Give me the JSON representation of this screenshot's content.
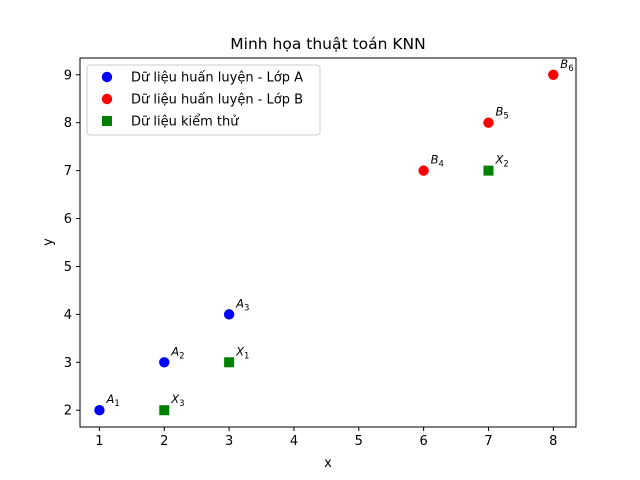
{
  "chart_data": {
    "type": "scatter",
    "title": "Minh họa thuật toán KNN",
    "xlabel": "x",
    "ylabel": "y",
    "xlim": [
      0.7,
      8.35
    ],
    "ylim": [
      1.65,
      9.35
    ],
    "xticks": [
      "1",
      "2",
      "3",
      "4",
      "5",
      "6",
      "7",
      "8"
    ],
    "yticks": [
      "2",
      "3",
      "4",
      "5",
      "6",
      "7",
      "8",
      "9"
    ],
    "grid": false,
    "legend_position": "top-left",
    "series": [
      {
        "name": "Dữ liệu huấn luyện - Lớp A",
        "marker": "circle",
        "color": "#0000ff",
        "points": [
          {
            "x": 1,
            "y": 2,
            "label": "A",
            "sub": "1"
          },
          {
            "x": 2,
            "y": 3,
            "label": "A",
            "sub": "2"
          },
          {
            "x": 3,
            "y": 4,
            "label": "A",
            "sub": "3"
          }
        ]
      },
      {
        "name": "Dữ liệu huấn luyện - Lớp B",
        "marker": "circle",
        "color": "#ff0000",
        "points": [
          {
            "x": 6,
            "y": 7,
            "label": "B",
            "sub": "4"
          },
          {
            "x": 7,
            "y": 8,
            "label": "B",
            "sub": "5"
          },
          {
            "x": 8,
            "y": 9,
            "label": "B",
            "sub": "6"
          }
        ]
      },
      {
        "name": "Dữ liệu kiểm thử",
        "marker": "square",
        "color": "#008000",
        "points": [
          {
            "x": 3,
            "y": 3,
            "label": "X",
            "sub": "1"
          },
          {
            "x": 7,
            "y": 7,
            "label": "X",
            "sub": "2"
          },
          {
            "x": 2,
            "y": 2,
            "label": "X",
            "sub": "3"
          }
        ]
      }
    ]
  }
}
